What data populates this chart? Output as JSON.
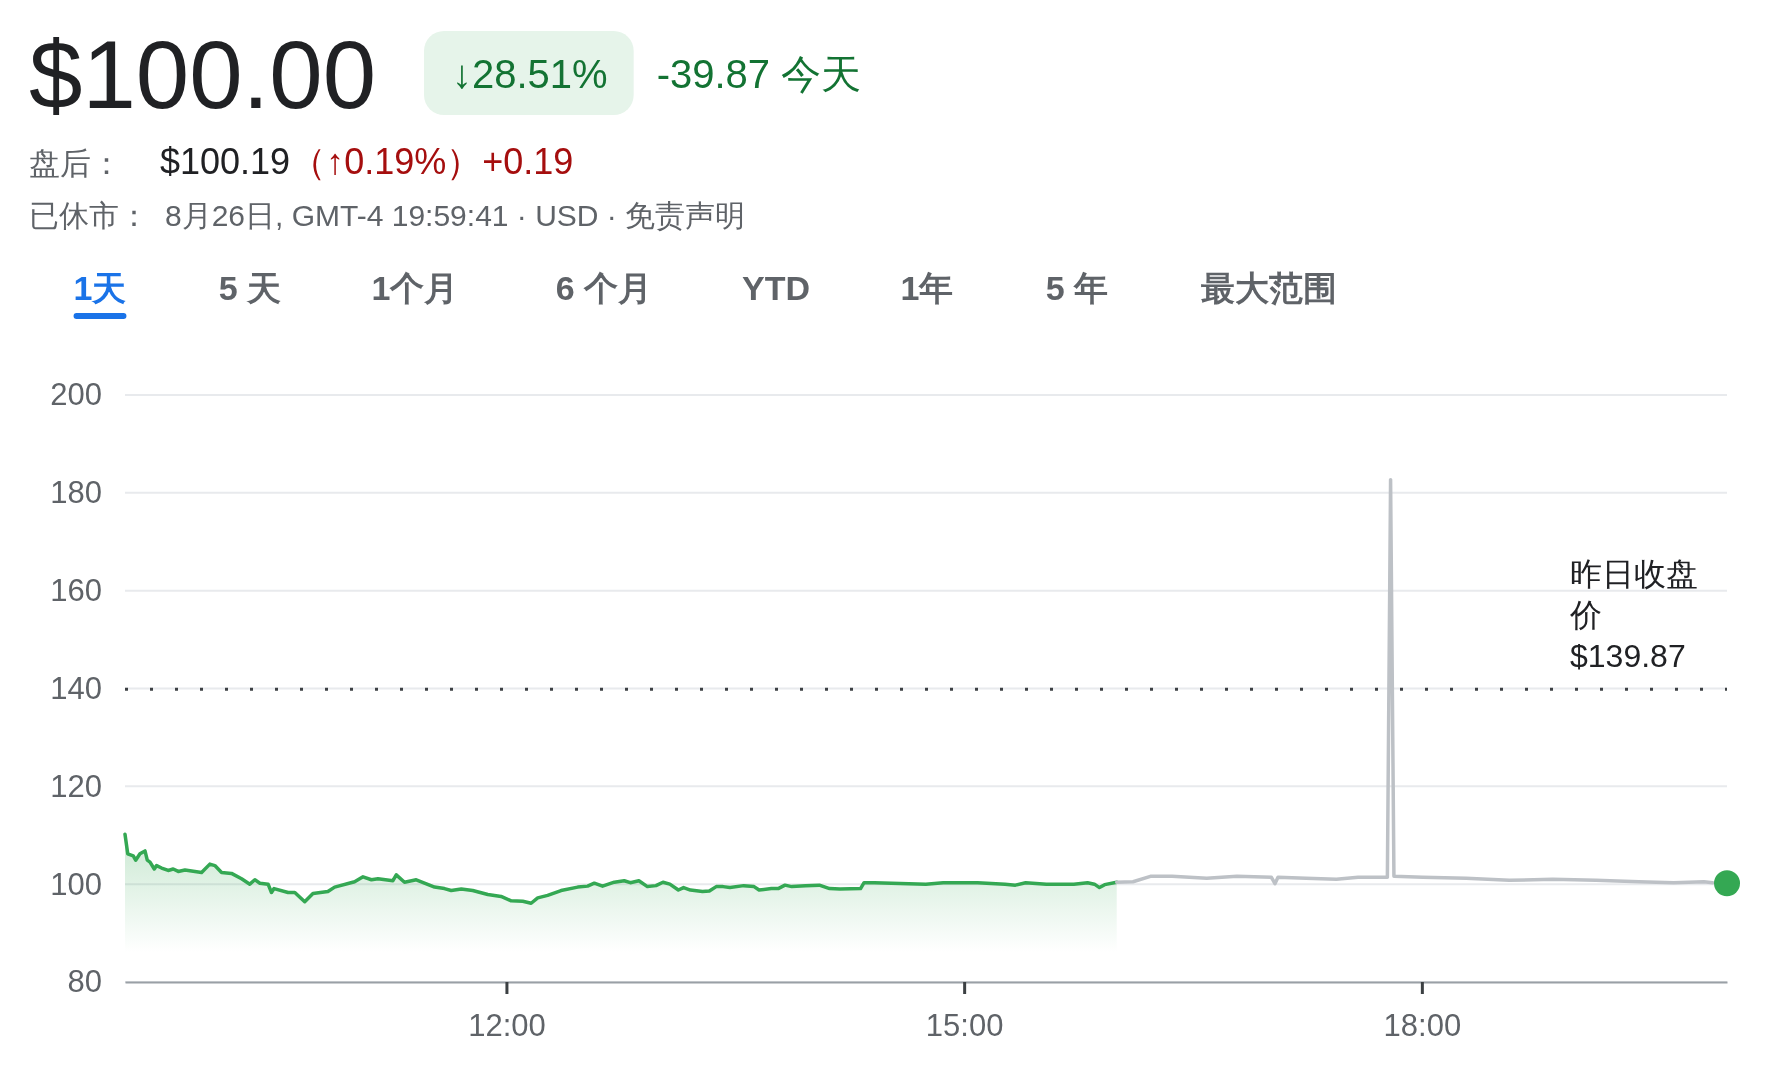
{
  "chart_data": {
    "type": "line",
    "title": "$100.00",
    "annotations": [
      "↓28.51%",
      "-39.87 今天",
      "盘后：",
      "$100.19",
      "（↑0.19%）",
      "+0.19",
      "已休市：",
      "8月26日, GMT-4 19:59:41 · USD · 免责声明",
      "1天",
      "5 天",
      "1个月",
      "6 个月",
      "YTD",
      "1年",
      "5 年",
      "最大范围"
    ],
    "xlim": [
      9.5,
      20
    ],
    "xticks": [
      {
        "value": 12,
        "label": "12:00"
      },
      {
        "value": 15,
        "label": "15:00"
      },
      {
        "value": 18,
        "label": "18:00"
      }
    ],
    "ylim": [
      80,
      200
    ],
    "yticks": [
      80,
      100,
      120,
      140,
      160,
      180,
      200
    ],
    "grid": "y",
    "ref_lines": [
      {
        "axis": "y",
        "value": 139.87,
        "label": "昨日收盘价 $139.87",
        "color": "#3c4043",
        "line_style": "dotted"
      }
    ],
    "series": [
      {
        "type": "area",
        "color": "#34a853",
        "x": [
          9.5,
          9.518,
          9.554,
          9.57,
          9.598,
          9.631,
          9.646,
          9.664,
          9.692,
          9.707,
          9.74,
          9.783,
          9.816,
          9.849,
          9.893,
          10.002,
          10.056,
          10.089,
          10.133,
          10.198,
          10.264,
          10.318,
          10.351,
          10.384,
          10.438,
          10.46,
          10.477,
          10.569,
          10.613,
          10.678,
          10.732,
          10.83,
          10.874,
          11.005,
          11.06,
          11.115,
          11.158,
          11.256,
          11.278,
          11.332,
          11.409,
          11.529,
          11.594,
          11.638,
          11.704,
          11.779,
          11.878,
          11.965,
          12.031,
          12.107,
          12.162,
          12.205,
          12.27,
          12.358,
          12.467,
          12.532,
          12.576,
          12.63,
          12.707,
          12.772,
          12.812,
          12.868,
          12.924,
          12.98,
          13.026,
          13.071,
          13.127,
          13.161,
          13.206,
          13.285,
          13.33,
          13.375,
          13.42,
          13.465,
          13.555,
          13.623,
          13.656,
          13.736,
          13.781,
          13.826,
          13.87,
          13.961,
          14.051,
          14.118,
          14.186,
          14.321,
          14.344,
          14.412,
          14.637,
          14.749,
          14.863,
          15.088,
          15.268,
          15.336,
          15.403,
          15.539,
          15.719,
          15.809,
          15.854,
          15.887,
          15.921,
          16.0
        ],
        "values": [
          110.2,
          106.2,
          105.8,
          104.9,
          106.2,
          106.8,
          104.9,
          104.5,
          103.1,
          103.8,
          103.3,
          102.8,
          103.1,
          102.6,
          102.9,
          102.4,
          104.1,
          103.8,
          102.4,
          102.2,
          101.1,
          100.0,
          100.9,
          100.2,
          100.0,
          98.3,
          99.1,
          98.3,
          98.3,
          96.4,
          98.1,
          98.5,
          99.4,
          100.5,
          101.5,
          100.9,
          101.1,
          100.7,
          101.9,
          100.4,
          100.9,
          99.4,
          99.1,
          98.7,
          99.0,
          98.7,
          97.9,
          97.5,
          96.6,
          96.5,
          96.1,
          97.2,
          97.7,
          98.7,
          99.4,
          99.6,
          100.2,
          99.6,
          100.4,
          100.7,
          100.3,
          100.7,
          99.5,
          99.7,
          100.4,
          100.0,
          98.8,
          99.3,
          98.8,
          98.5,
          98.6,
          99.5,
          99.5,
          99.3,
          99.7,
          99.5,
          98.8,
          99.1,
          99.1,
          99.8,
          99.5,
          99.7,
          99.8,
          99.1,
          99.0,
          99.1,
          100.3,
          100.3,
          100.1,
          100.0,
          100.3,
          100.3,
          100.0,
          99.8,
          100.3,
          100.0,
          100.0,
          100.3,
          100.0,
          99.3,
          99.9,
          100.4
        ]
      },
      {
        "type": "line",
        "color": "#bdc1c6",
        "x": [
          16.0,
          16.107,
          16.221,
          16.363,
          16.59,
          16.788,
          17.014,
          17.037,
          17.057,
          17.241,
          17.44,
          17.582,
          17.774,
          17.795,
          17.817,
          18.006,
          18.29,
          18.573,
          18.857,
          19.14,
          19.423,
          19.65,
          19.849,
          19.906
        ],
        "values": [
          100.4,
          100.5,
          101.6,
          101.6,
          101.2,
          101.6,
          101.4,
          100.1,
          101.4,
          101.2,
          101.0,
          101.4,
          101.4,
          182.7,
          101.6,
          101.4,
          101.2,
          100.8,
          101.0,
          100.8,
          100.5,
          100.3,
          100.5,
          100.3
        ]
      },
      {
        "type": "scatter",
        "color": "#34a853",
        "marker": "circle",
        "x": [
          20
        ],
        "values": [
          100.2
        ]
      }
    ]
  }
}
